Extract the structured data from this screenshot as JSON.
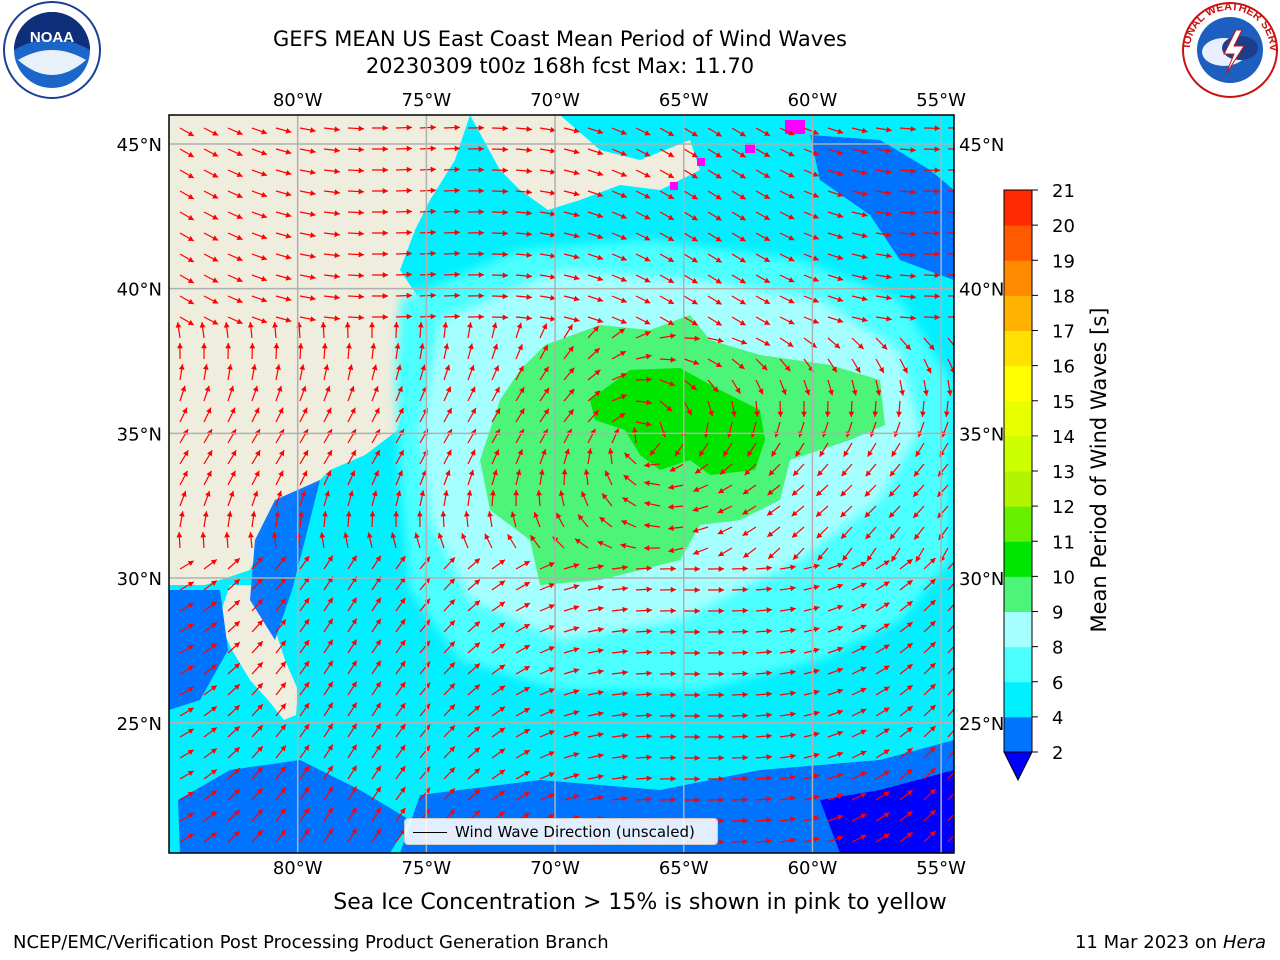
{
  "header": {
    "title": "GEFS MEAN US East Coast Mean Period of Wind Waves",
    "subtitle": "20230309 t00z 168h fcst   Max: 11.70"
  },
  "logos": {
    "left": {
      "text": "NOAA",
      "ring_text": "NATIONAL OCEANIC AND ATMOSPHERIC ADMINISTRATION · U.S. DEPARTMENT OF COMMERCE"
    },
    "right": {
      "ring_text": "NATIONAL WEATHER SERVICE"
    }
  },
  "map": {
    "lon_labels": [
      "80°W",
      "75°W",
      "70°W",
      "65°W",
      "60°W",
      "55°W"
    ],
    "lon_values": [
      -80,
      -75,
      -70,
      -65,
      -60,
      -55
    ],
    "lat_labels": [
      "45°N",
      "40°N",
      "35°N",
      "30°N",
      "25°N"
    ],
    "lat_values": [
      45,
      40,
      35,
      30,
      25
    ],
    "extent": {
      "lon_min": -85,
      "lon_max": -54.5,
      "lat_min": 20.5,
      "lat_max": 46
    },
    "colors": {
      "land": "#efedde",
      "gridline": "#b0b0b0",
      "arrow": "#ff0000",
      "ice": "#ff00ff"
    },
    "legend_label": "Wind Wave Direction (unscaled)"
  },
  "colorbar": {
    "label": "Mean Period of Wind Waves [s]",
    "ticks": [
      "2",
      "4",
      "6",
      "8",
      "9",
      "10",
      "11",
      "12",
      "13",
      "14",
      "15",
      "16",
      "17",
      "18",
      "19",
      "20",
      "21"
    ],
    "colors": [
      "#0073ff",
      "#00f0ff",
      "#4cffff",
      "#a6ffff",
      "#4cf57a",
      "#00e600",
      "#66f000",
      "#b3f500",
      "#ccff00",
      "#e8ff00",
      "#ffff00",
      "#ffe000",
      "#ffb300",
      "#ff8a00",
      "#ff5a00",
      "#ff2a00",
      "#ff0000"
    ],
    "under_color": "#0000ff"
  },
  "note": "Sea Ice Concentration > 15% is shown in pink to yellow",
  "footer": {
    "org": "NCEP/EMC/Verification Post Processing Product Generation Branch",
    "date": "11 Mar 2023 on",
    "machine": "Hera"
  }
}
